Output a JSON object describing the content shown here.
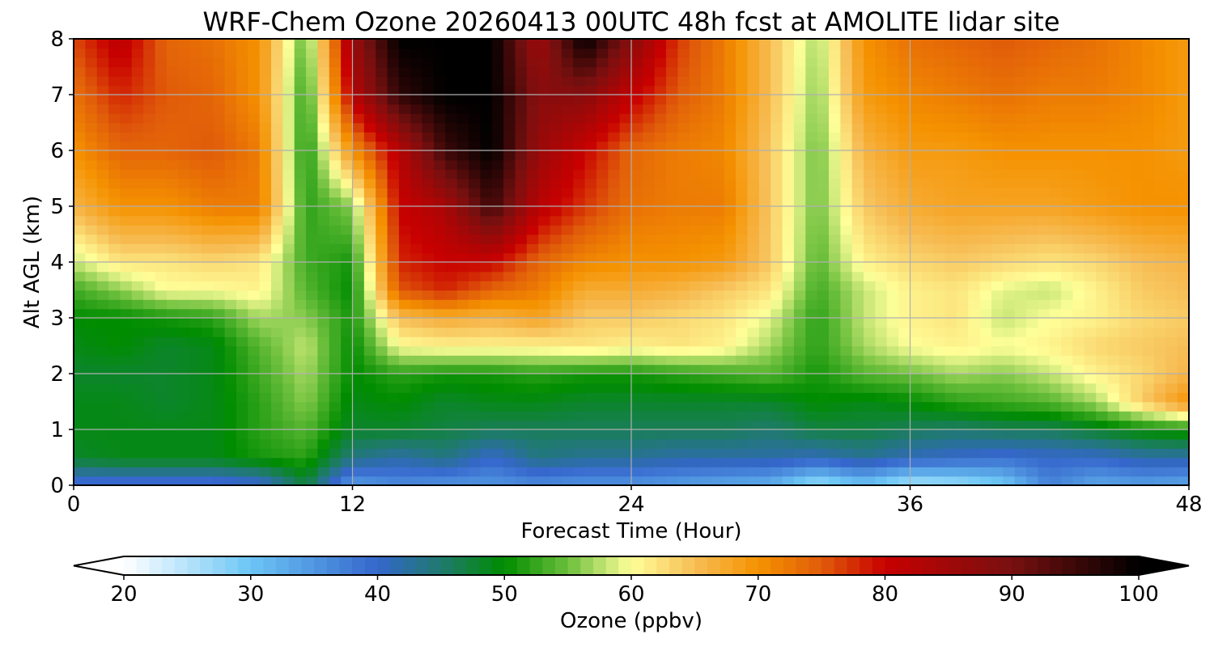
{
  "chart_data": {
    "type": "heatmap",
    "title": "WRF-Chem Ozone  20260413 00UTC 48h fcst at AMOLITE lidar site",
    "xlabel": "Forecast Time (Hour)",
    "ylabel": "Alt AGL (km)",
    "xlim": [
      0,
      48
    ],
    "ylim": [
      0,
      8
    ],
    "xticks": [
      0,
      12,
      24,
      36,
      48
    ],
    "yticks": [
      0,
      1,
      2,
      3,
      4,
      5,
      6,
      7,
      8
    ],
    "grid": true,
    "colorbar": {
      "label": "Ozone  (ppbv)",
      "range": [
        20,
        100
      ],
      "ticks": [
        20,
        30,
        40,
        50,
        60,
        70,
        80,
        90,
        100
      ],
      "extend": "both",
      "orientation": "horizontal",
      "position": "bottom",
      "stops": [
        {
          "v": 20,
          "c": "#ffffff"
        },
        {
          "v": 30,
          "c": "#6cc6f5"
        },
        {
          "v": 40,
          "c": "#3566cc"
        },
        {
          "v": 45,
          "c": "#1f7a6e"
        },
        {
          "v": 50,
          "c": "#008c00"
        },
        {
          "v": 55,
          "c": "#6cbf3c"
        },
        {
          "v": 60,
          "c": "#ffff99"
        },
        {
          "v": 65,
          "c": "#f7bd55"
        },
        {
          "v": 70,
          "c": "#f59200"
        },
        {
          "v": 75,
          "c": "#e05b0a"
        },
        {
          "v": 80,
          "c": "#c80000"
        },
        {
          "v": 90,
          "c": "#781010"
        },
        {
          "v": 100,
          "c": "#000000"
        }
      ]
    },
    "x": [
      0,
      2,
      4,
      6,
      8,
      10,
      12,
      14,
      16,
      18,
      20,
      22,
      24,
      26,
      28,
      30,
      32,
      34,
      36,
      38,
      40,
      42,
      44,
      46,
      48
    ],
    "y": [
      0,
      0.5,
      1,
      1.5,
      2,
      2.5,
      3,
      3.5,
      4,
      5,
      6,
      7,
      8
    ],
    "z_description": "rows = altitude (y), columns = forecast hour (x), values in ppbv",
    "z": [
      [
        38,
        38,
        38,
        38,
        39,
        47,
        34,
        36,
        35,
        35,
        36,
        35,
        35,
        34,
        33,
        32,
        26,
        30,
        25,
        26,
        29,
        37,
        33,
        34,
        33
      ],
      [
        48,
        49,
        49,
        49,
        51,
        52,
        44,
        42,
        44,
        40,
        44,
        43,
        43,
        42,
        42,
        42,
        41,
        43,
        41,
        40,
        39,
        40,
        40,
        42,
        42
      ],
      [
        49,
        49,
        49,
        49,
        52,
        54,
        48,
        48,
        47,
        46,
        46,
        46,
        46,
        46,
        46,
        45,
        47,
        47,
        46,
        45,
        46,
        46,
        48,
        50,
        51
      ],
      [
        49,
        49,
        48,
        49,
        52,
        56,
        49,
        50,
        48,
        49,
        49,
        48,
        48,
        48,
        48,
        48,
        50,
        49,
        50,
        52,
        53,
        54,
        57,
        64,
        70
      ],
      [
        48,
        48,
        48,
        49,
        53,
        57,
        50,
        52,
        51,
        51,
        52,
        51,
        51,
        52,
        53,
        54,
        51,
        54,
        55,
        57,
        56,
        58,
        61,
        63,
        66
      ],
      [
        49,
        50,
        48,
        49,
        54,
        58,
        50,
        60,
        61,
        61,
        61,
        62,
        61,
        62,
        61,
        57,
        52,
        57,
        60,
        61,
        60,
        61,
        63,
        64,
        65
      ],
      [
        50,
        50,
        51,
        52,
        57,
        56,
        51,
        65,
        67,
        66,
        68,
        64,
        64,
        63,
        62,
        59,
        52,
        58,
        61,
        62,
        58,
        60,
        61,
        63,
        64
      ],
      [
        53,
        56,
        60,
        60,
        61,
        54,
        50,
        75,
        78,
        74,
        72,
        67,
        67,
        66,
        64,
        62,
        53,
        58,
        61,
        62,
        59,
        58,
        61,
        64,
        65
      ],
      [
        58,
        62,
        62,
        63,
        62,
        53,
        51,
        78,
        80,
        80,
        74,
        71,
        70,
        70,
        69,
        64,
        54,
        61,
        63,
        64,
        63,
        62,
        63,
        65,
        66
      ],
      [
        66,
        70,
        70,
        72,
        72,
        52,
        56,
        80,
        84,
        95,
        82,
        77,
        73,
        72,
        72,
        64,
        55,
        64,
        67,
        68,
        68,
        68,
        69,
        70,
        70
      ],
      [
        70,
        74,
        74,
        75,
        72,
        51,
        70,
        82,
        95,
        100,
        86,
        80,
        74,
        72,
        71,
        64,
        55,
        66,
        69,
        69,
        70,
        70,
        70,
        70,
        69
      ],
      [
        73,
        78,
        75,
        74,
        70,
        52,
        82,
        96,
        100,
        100,
        88,
        88,
        81,
        75,
        72,
        65,
        56,
        69,
        71,
        72,
        73,
        72,
        72,
        71,
        69
      ],
      [
        76,
        82,
        74,
        73,
        70,
        54,
        86,
        100,
        100,
        100,
        85,
        100,
        88,
        77,
        72,
        65,
        57,
        70,
        73,
        74,
        75,
        74,
        73,
        71,
        69
      ]
    ]
  }
}
